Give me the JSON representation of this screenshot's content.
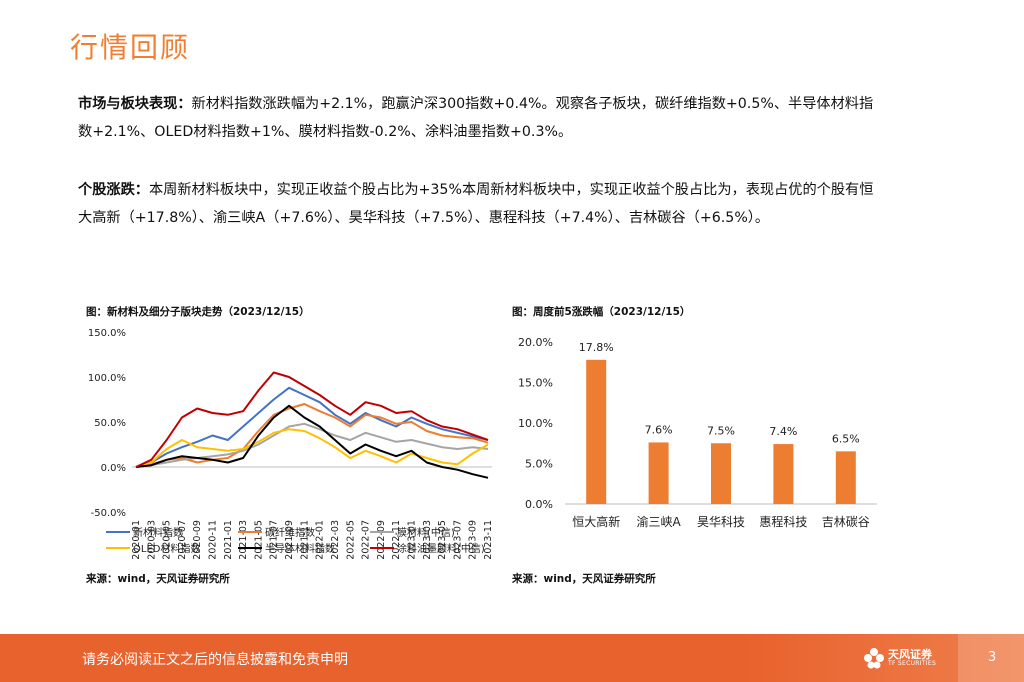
{
  "title": "行情回顾",
  "para1": {
    "label": "市场与板块表现：",
    "text": "新材料指数涨跌幅为+2.1%，跑赢沪深300指数+0.4%。观察各子板块，碳纤维指数+0.5%、半导体材料指数+2.1%、OLED材料指数+1%、膜材料指数-0.2%、涂料油墨指数+0.3%。"
  },
  "para2": {
    "label": "个股涨跌：",
    "text": "本周新材料板块中，实现正收益个股占比为+35%本周新材料板块中，实现正收益个股占比为，表现占优的个股有恒大高新（+17.8%）、渝三峡A（+7.6%）、昊华科技（+7.5%）、惠程科技（+7.4%）、吉林碳谷（+6.5%）。"
  },
  "chart_data": [
    {
      "type": "line",
      "title": "图：新材料及细分子版块走势（2023/12/15）",
      "source": "来源：wind，天风证券研究所",
      "x": [
        "2020-01",
        "2020-03",
        "2020-05",
        "2020-07",
        "2020-09",
        "2020-11",
        "2021-01",
        "2021-03",
        "2021-05",
        "2021-07",
        "2021-09",
        "2021-11",
        "2022-01",
        "2022-03",
        "2022-05",
        "2022-07",
        "2022-09",
        "2022-11",
        "2023-01",
        "2023-03",
        "2023-05",
        "2023-07",
        "2023-09",
        "2023-11"
      ],
      "ylim": [
        -50,
        150
      ],
      "yticks": [
        "-50.0%",
        "0.0%",
        "50.0%",
        "100.0%",
        "150.0%"
      ],
      "ytick_values": [
        -50,
        0,
        50,
        100,
        150
      ],
      "series": [
        {
          "name": "新材料指数",
          "color": "#4472c4",
          "values": [
            0,
            5,
            15,
            22,
            28,
            35,
            30,
            45,
            60,
            75,
            88,
            80,
            72,
            58,
            48,
            60,
            52,
            45,
            55,
            48,
            42,
            38,
            34,
            30
          ]
        },
        {
          "name": "碳纤维指数",
          "color": "#ed7d31",
          "values": [
            0,
            3,
            8,
            10,
            5,
            8,
            10,
            20,
            40,
            58,
            65,
            70,
            62,
            55,
            45,
            58,
            55,
            48,
            50,
            40,
            35,
            33,
            32,
            27
          ]
        },
        {
          "name": "膜材料(中信)",
          "color": "#a5a5a5",
          "values": [
            0,
            2,
            5,
            8,
            10,
            12,
            14,
            18,
            25,
            35,
            45,
            48,
            42,
            35,
            30,
            38,
            33,
            28,
            30,
            26,
            22,
            20,
            22,
            20
          ]
        },
        {
          "name": "OLED材料指数",
          "color": "#ffc000",
          "values": [
            0,
            5,
            20,
            30,
            22,
            20,
            18,
            20,
            28,
            38,
            42,
            40,
            32,
            22,
            10,
            18,
            12,
            5,
            15,
            10,
            5,
            3,
            15,
            25
          ]
        },
        {
          "name": "半导体材料指数",
          "color": "#000000",
          "values": [
            0,
            2,
            8,
            12,
            10,
            8,
            5,
            10,
            35,
            55,
            68,
            55,
            45,
            30,
            15,
            25,
            18,
            12,
            18,
            5,
            0,
            -3,
            -8,
            -12
          ]
        },
        {
          "name": "涂料油墨颜料(中信)",
          "color": "#c00000",
          "values": [
            0,
            8,
            30,
            55,
            65,
            60,
            58,
            62,
            85,
            105,
            100,
            90,
            80,
            68,
            58,
            72,
            68,
            60,
            62,
            52,
            45,
            42,
            36,
            30
          ]
        }
      ]
    },
    {
      "type": "bar",
      "title": "图：周度前5涨跌幅（2023/12/15）",
      "source": "来源：wind，天风证券研究所",
      "categories": [
        "恒大高新",
        "渝三峡A",
        "昊华科技",
        "惠程科技",
        "吉林碳谷"
      ],
      "values": [
        17.8,
        7.6,
        7.5,
        7.4,
        6.5
      ],
      "labels": [
        "17.8%",
        "7.6%",
        "7.5%",
        "7.4%",
        "6.5%"
      ],
      "ylim": [
        0,
        20
      ],
      "yticks": [
        "0.0%",
        "5.0%",
        "10.0%",
        "15.0%",
        "20.0%"
      ],
      "ytick_values": [
        0,
        5,
        10,
        15,
        20
      ],
      "color": "#ed7d31"
    }
  ],
  "footer": {
    "disclaimer": "请务必阅读正文之后的信息披露和免责申明",
    "logo_text": "天风证券",
    "logo_sub": "TF SECURITIES",
    "page": "3"
  }
}
